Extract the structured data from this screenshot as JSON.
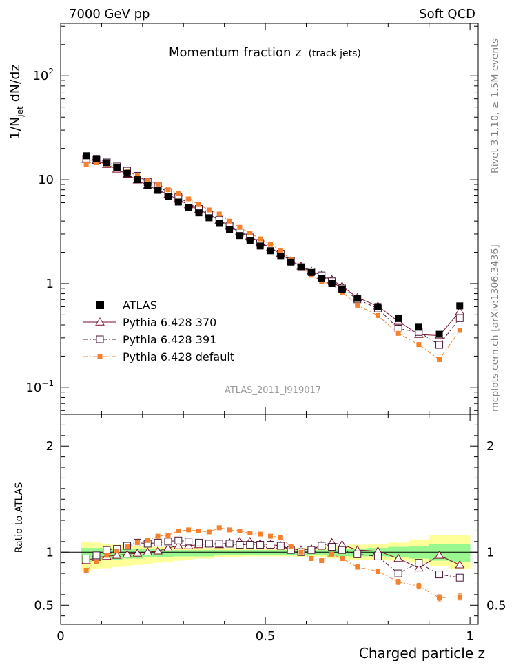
{
  "header": {
    "left": "7000 GeV pp",
    "right": "Soft QCD"
  },
  "side_labels": {
    "rivet": "Rivet 3.1.10, ≥ 1.5M events",
    "source": "mcplots.cern.ch [arXiv:1306.3436]"
  },
  "plot": {
    "title": "Momentum fraction z",
    "title_small": "(track jets)",
    "ylabel_main": "1/N",
    "ylabel_sub": "jet",
    "ylabel_rest": " dN/dz",
    "ratio_ylabel": "Ratio to ATLAS",
    "xlabel": "Charged particle z",
    "watermark": "ATLAS_2011_I919017"
  },
  "chart_data": {
    "type": "scatter",
    "title": "Momentum fraction z (track jets)",
    "xlabel": "Charged particle z",
    "ylabel": "1/Njet dN/dz",
    "xlim": [
      0,
      1.02
    ],
    "ylim": [
      0.055,
      320
    ],
    "yscale": "log",
    "ratio_ylim": [
      0.32,
      2.3
    ],
    "x_ticks": [
      "0",
      "0.5",
      "1"
    ],
    "y_ticks": [
      "10^-1",
      "1",
      "10",
      "10^2"
    ],
    "ratio_ticks": [
      "0.5",
      "1",
      "2"
    ],
    "legend_position": "left",
    "x": [
      0.0625,
      0.0875,
      0.1125,
      0.1375,
      0.1625,
      0.1875,
      0.2125,
      0.2375,
      0.2625,
      0.2875,
      0.3125,
      0.3375,
      0.3625,
      0.3875,
      0.4125,
      0.4375,
      0.4625,
      0.4875,
      0.5125,
      0.5375,
      0.5625,
      0.5875,
      0.6125,
      0.6375,
      0.6625,
      0.6875,
      0.725,
      0.775,
      0.825,
      0.875,
      0.925,
      0.975
    ],
    "band_edges": [
      0.05,
      0.075,
      0.1,
      0.125,
      0.15,
      0.175,
      0.2,
      0.225,
      0.25,
      0.275,
      0.3,
      0.325,
      0.35,
      0.375,
      0.4,
      0.425,
      0.45,
      0.475,
      0.5,
      0.525,
      0.55,
      0.575,
      0.6,
      0.625,
      0.65,
      0.675,
      0.7,
      0.75,
      0.8,
      0.85,
      0.9,
      0.95,
      1.0
    ],
    "band_yellow": [
      [
        0.82,
        1.1
      ],
      [
        0.84,
        1.09
      ],
      [
        0.85,
        1.08
      ],
      [
        0.86,
        1.07
      ],
      [
        0.87,
        1.07
      ],
      [
        0.88,
        1.06
      ],
      [
        0.89,
        1.06
      ],
      [
        0.9,
        1.05
      ],
      [
        0.91,
        1.05
      ],
      [
        0.92,
        1.05
      ],
      [
        0.93,
        1.04
      ],
      [
        0.94,
        1.04
      ],
      [
        0.94,
        1.04
      ],
      [
        0.95,
        1.04
      ],
      [
        0.95,
        1.04
      ],
      [
        0.95,
        1.04
      ],
      [
        0.96,
        1.03
      ],
      [
        0.96,
        1.03
      ],
      [
        0.96,
        1.03
      ],
      [
        0.96,
        1.04
      ],
      [
        0.96,
        1.04
      ],
      [
        0.95,
        1.04
      ],
      [
        0.95,
        1.05
      ],
      [
        0.95,
        1.05
      ],
      [
        0.94,
        1.06
      ],
      [
        0.94,
        1.06
      ],
      [
        0.93,
        1.07
      ],
      [
        0.93,
        1.08
      ],
      [
        0.92,
        1.09
      ],
      [
        0.9,
        1.12
      ],
      [
        0.87,
        1.16
      ],
      [
        0.84,
        1.16
      ]
    ],
    "band_green": [
      [
        0.91,
        1.04
      ],
      [
        0.92,
        1.04
      ],
      [
        0.93,
        1.04
      ],
      [
        0.93,
        1.03
      ],
      [
        0.94,
        1.03
      ],
      [
        0.94,
        1.03
      ],
      [
        0.95,
        1.03
      ],
      [
        0.95,
        1.03
      ],
      [
        0.95,
        1.02
      ],
      [
        0.96,
        1.02
      ],
      [
        0.96,
        1.02
      ],
      [
        0.96,
        1.02
      ],
      [
        0.96,
        1.02
      ],
      [
        0.97,
        1.02
      ],
      [
        0.97,
        1.02
      ],
      [
        0.97,
        1.02
      ],
      [
        0.97,
        1.02
      ],
      [
        0.97,
        1.02
      ],
      [
        0.97,
        1.02
      ],
      [
        0.97,
        1.02
      ],
      [
        0.97,
        1.02
      ],
      [
        0.97,
        1.02
      ],
      [
        0.97,
        1.02
      ],
      [
        0.97,
        1.02
      ],
      [
        0.96,
        1.03
      ],
      [
        0.96,
        1.03
      ],
      [
        0.96,
        1.03
      ],
      [
        0.96,
        1.04
      ],
      [
        0.95,
        1.05
      ],
      [
        0.94,
        1.06
      ],
      [
        0.92,
        1.08
      ],
      [
        0.91,
        1.08
      ]
    ],
    "series": [
      {
        "name": "ATLAS",
        "color": "#000000",
        "marker": "filled-square",
        "values": [
          17.0,
          16.0,
          14.6,
          13.0,
          11.5,
          10.0,
          8.8,
          7.9,
          6.9,
          6.1,
          5.4,
          4.8,
          4.3,
          3.8,
          3.3,
          2.9,
          2.6,
          2.3,
          2.07,
          1.83,
          1.61,
          1.44,
          1.28,
          1.13,
          1.0,
          0.88,
          0.72,
          0.6,
          0.46,
          0.38,
          0.325,
          0.61
        ]
      },
      {
        "name": "Pythia 6.428 370",
        "color": "#7a0f2c",
        "marker": "open-triangle",
        "line": "solid",
        "ratio": [
          0.92,
          0.95,
          0.96,
          0.97,
          0.98,
          0.99,
          1.0,
          1.01,
          1.04,
          1.06,
          1.06,
          1.07,
          1.08,
          1.07,
          1.09,
          1.1,
          1.1,
          1.08,
          1.07,
          1.06,
          1.03,
          1.02,
          1.03,
          1.06,
          1.09,
          1.07,
          1.02,
          1.01,
          0.94,
          0.85,
          0.97,
          0.88
        ]
      },
      {
        "name": "Pythia 6.428 391",
        "color": "#4a1a3a",
        "marker": "open-square",
        "line": "dashdot",
        "ratio": [
          0.94,
          0.97,
          1.02,
          1.03,
          1.06,
          1.09,
          1.08,
          1.09,
          1.1,
          1.11,
          1.1,
          1.09,
          1.08,
          1.08,
          1.08,
          1.07,
          1.07,
          1.07,
          1.07,
          1.06,
          1.02,
          1.0,
          1.02,
          1.06,
          1.05,
          1.02,
          0.98,
          0.96,
          0.8,
          0.9,
          0.79,
          0.76
        ]
      },
      {
        "name": "Pythia 6.428 default",
        "color": "#f4812e",
        "marker": "filled-square",
        "line": "dashdot",
        "ratio": [
          0.83,
          0.91,
          0.97,
          1.01,
          1.05,
          1.09,
          1.11,
          1.15,
          1.16,
          1.2,
          1.21,
          1.2,
          1.19,
          1.23,
          1.21,
          1.2,
          1.18,
          1.17,
          1.15,
          1.14,
          1.05,
          1.0,
          0.94,
          0.92,
          0.98,
          0.94,
          0.86,
          0.82,
          0.72,
          0.68,
          0.57,
          0.58
        ]
      }
    ]
  }
}
